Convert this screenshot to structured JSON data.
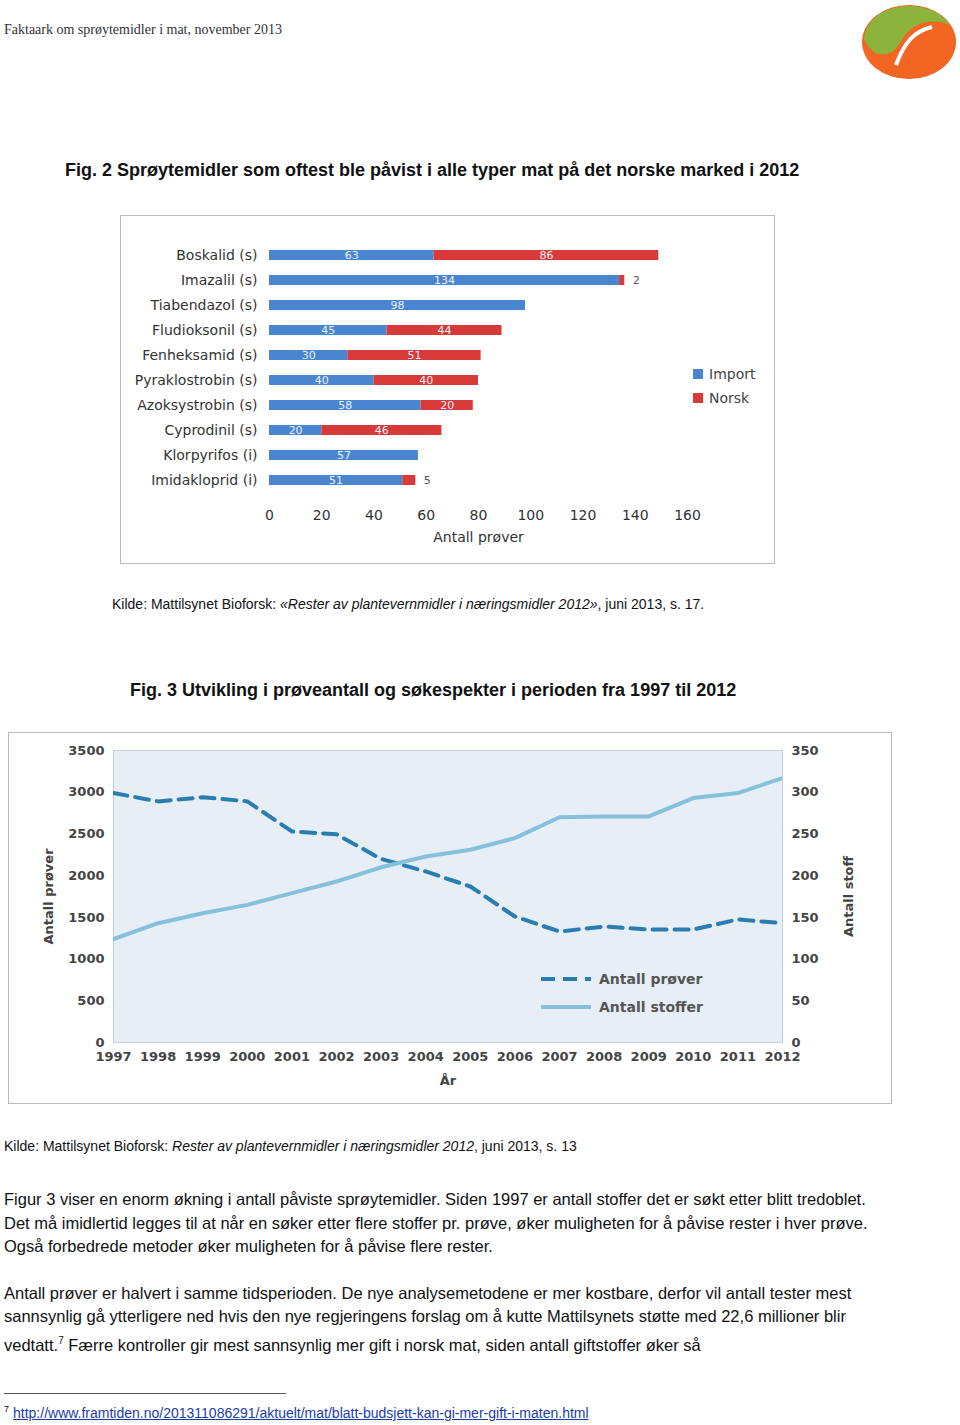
{
  "chart_data": [
    {
      "type": "bar",
      "title": "Fig. 2 Sprøytemidler som oftest ble påvist i alle typer mat på det norske marked i 2012",
      "orientation": "horizontal",
      "stacked": true,
      "data_labels": true,
      "grid": false,
      "legend": "right",
      "x_label": "Antall prøver",
      "categories": [
        "Boskalid (s)",
        "Imazalil (s)",
        "Tiabendazol (s)",
        "Fludioksonil (s)",
        "Fenheksamid (s)",
        "Pyraklostrobin (s)",
        "Azoksystrobin (s)",
        "Cyprodinil (s)",
        "Klorpyrifos (i)",
        "Imidakloprid (i)"
      ],
      "series": [
        {
          "name": "Import",
          "color": "#4a86d0",
          "values": [
            63,
            134,
            98,
            45,
            30,
            40,
            58,
            20,
            57,
            51
          ]
        },
        {
          "name": "Norsk",
          "color": "#d83a3a",
          "values": [
            86,
            2,
            null,
            44,
            51,
            40,
            20,
            46,
            null,
            5
          ]
        }
      ],
      "xlim": [
        0,
        160
      ],
      "xticks": [
        0,
        20,
        40,
        60,
        80,
        100,
        120,
        140,
        160
      ]
    },
    {
      "type": "line",
      "title": "Fig. 3 Utvikling i prøveantall og søkespekter i perioden fra 1997 til 2012",
      "grid": false,
      "legend": "lower right",
      "x_label": "År",
      "y_label": "Antall prøver",
      "y2_label": "Antall stoff",
      "x": [
        1997,
        1998,
        1999,
        2000,
        2001,
        2002,
        2003,
        2004,
        2005,
        2006,
        2007,
        2008,
        2009,
        2010,
        2011,
        2012
      ],
      "series": [
        {
          "name": "Antall prøver",
          "color": "#2a7db0",
          "line_style": "dashed",
          "values": [
            2990,
            2890,
            2940,
            2890,
            2530,
            2495,
            2200,
            2050,
            1870,
            1510,
            1330,
            1390,
            1355,
            1355,
            1475,
            1430
          ]
        },
        {
          "name": "Antall stoffer",
          "color": "#86c0da",
          "line_style": "solid",
          "axis": "y2",
          "values": [
            124,
            143,
            155,
            165,
            179,
            193,
            210,
            223,
            231,
            245,
            270,
            271,
            271,
            293,
            299,
            317
          ]
        }
      ],
      "xlim": [
        1997,
        2012
      ],
      "xticks": [
        1997,
        1998,
        1999,
        2000,
        2001,
        2002,
        2003,
        2004,
        2005,
        2006,
        2007,
        2008,
        2009,
        2010,
        2011,
        2012
      ],
      "ylim": [
        0,
        3500
      ],
      "yticks": [
        0,
        500,
        1000,
        1500,
        2000,
        2500,
        3000,
        3500
      ],
      "y2lim": [
        0,
        350
      ],
      "y2ticks": [
        0,
        50,
        100,
        150,
        200,
        250,
        300,
        350
      ]
    }
  ],
  "document": {
    "header": "Faktaark om sprøytemidler i mat, november 2013",
    "sources": [
      {
        "prefix": "Kilde: Mattilsynet Bioforsk: ",
        "italic": "«Rester av plantevernmidler i næringsmidler 2012»",
        "suffix": ",  juni 2013, s. 17."
      },
      {
        "prefix": "Kilde: Mattilsynet Bioforsk: ",
        "italic": "Rester av plantevernmidler i næringsmidler 2012",
        "suffix": ",  juni 2013, s. 13"
      }
    ],
    "paragraphs": [
      {
        "text": "Figur 3 viser en enorm økning i antall påviste sprøytemidler. Siden 1997 er antall stoffer det er søkt etter blitt tredoblet. Det må imidlertid legges til at når en søker etter flere stoffer pr. prøve, øker muligheten for å påvise rester i hver prøve. Også forbedrede metoder øker muligheten for å påvise flere rester."
      },
      {
        "text": "Antall prøver er halvert i samme tidsperioden. De nye analysemetodene er mer kostbare, derfor vil antall tester mest sannsynlig gå ytterligere ned hvis den nye regjeringens forslag om å kutte Mattilsynets støtte med 22,6 millioner blir vedtatt.",
        "footnote_ref": "7",
        "text_after": " Færre kontroller gir mest sannsynlig mer gift i norsk mat, siden antall giftstoffer øker så"
      }
    ],
    "footnote": {
      "number": "7",
      "link": "http://www.framtiden.no/201311086291/aktuelt/mat/blatt-budsjett-kan-gi-mer-gift-i-maten.html"
    }
  }
}
